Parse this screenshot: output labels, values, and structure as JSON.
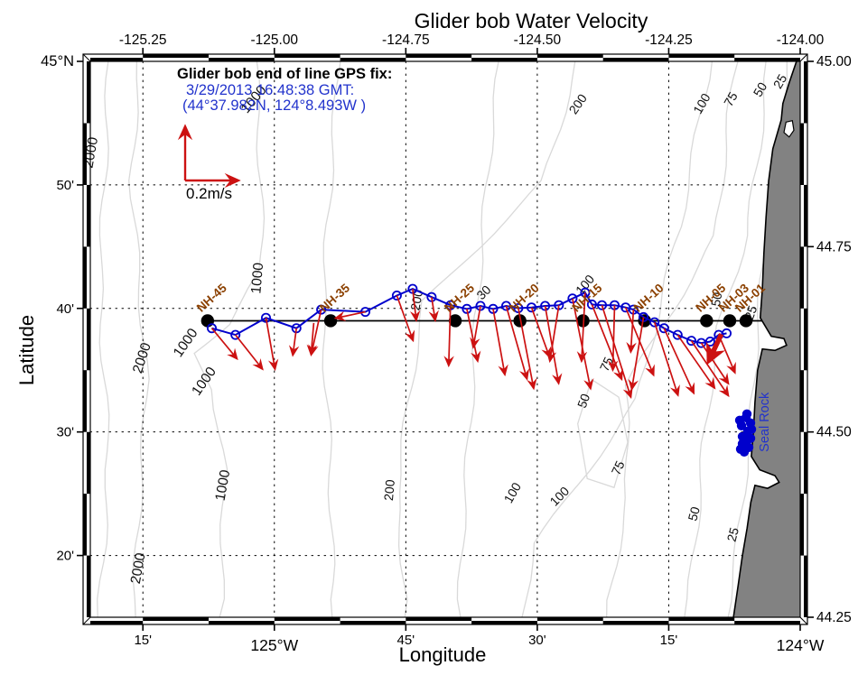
{
  "chart_data": {
    "type": "scatter",
    "title": "Glider bob Water Velocity",
    "xlabel": "Longitude",
    "ylabel": "Latitude",
    "xlim": [
      -125.35,
      -124.0
    ],
    "ylim": [
      44.25,
      45.0
    ],
    "grid": "dotted",
    "legend_position": "none",
    "axis_ticks": {
      "top": {
        "lons": [
          -125.25,
          -125.0,
          -124.75,
          -124.5,
          -124.25,
          -124.0
        ],
        "labels": [
          "-125.25",
          "-125.00",
          "-124.75",
          "-124.50",
          "-124.25",
          "-124.00"
        ]
      },
      "bottom": {
        "lons": [
          -125.25,
          -125.0,
          -124.75,
          -124.5,
          -124.25,
          -124.0
        ],
        "labels": [
          "15'",
          "125°W",
          "45'",
          "30'",
          "15'",
          "124°W"
        ]
      },
      "left": {
        "lats": [
          45.0,
          44.8333,
          44.6667,
          44.5,
          44.3333
        ],
        "labels": [
          "45°N",
          "50'",
          "40'",
          "30'",
          "20'"
        ]
      },
      "right": {
        "lats": [
          45.0,
          44.75,
          44.5,
          44.25
        ],
        "labels": [
          "45.00",
          "44.75",
          "44.50",
          "44.25"
        ]
      }
    },
    "annotation": {
      "heading": "Glider bob end of line GPS fix:",
      "datetime": "3/29/2013 16:48:38 GMT:",
      "position": "(44°37.982N, 124°8.493W )"
    },
    "scale_arrow": {
      "label": "0.2m/s",
      "speed_mps": 0.2
    },
    "seal_rock": {
      "label": "Seal Rock",
      "lon": -124.103,
      "lat": 44.495
    },
    "transect": {
      "lat": 44.65,
      "lon_start": -125.127,
      "lon_end": -124.073
    },
    "stations": {
      "names": [
        "NH-45",
        "NH-35",
        "NH-25",
        "NH-20",
        "NH-15",
        "NH-10",
        "NH-05",
        "NH-03",
        "NH-01"
      ],
      "lons": [
        -125.127,
        -124.893,
        -124.656,
        -124.533,
        -124.413,
        -124.296,
        -124.178,
        -124.134,
        -124.103
      ],
      "lat": 44.65
    },
    "glider_track": {
      "lons": [
        -125.119,
        -125.074,
        -125.016,
        -124.958,
        -124.911,
        -124.827,
        -124.767,
        -124.737,
        -124.701,
        -124.665,
        -124.634,
        -124.608,
        -124.584,
        -124.559,
        -124.536,
        -124.511,
        -124.485,
        -124.459,
        -124.433,
        -124.409,
        -124.396,
        -124.377,
        -124.353,
        -124.332,
        -124.317,
        -124.298,
        -124.277,
        -124.259,
        -124.233,
        -124.207,
        -124.188,
        -124.171,
        -124.155,
        -124.14
      ],
      "lats": [
        44.64,
        44.631,
        44.654,
        44.64,
        44.665,
        44.662,
        44.684,
        44.693,
        44.682,
        44.671,
        44.666,
        44.67,
        44.666,
        44.67,
        44.667,
        44.668,
        44.67,
        44.671,
        44.68,
        44.688,
        44.672,
        44.671,
        44.671,
        44.668,
        44.665,
        44.655,
        44.648,
        44.64,
        44.631,
        44.623,
        44.62,
        44.622,
        44.631,
        44.633
      ]
    },
    "velocity_vectors": [
      [
        -125.119,
        44.64,
        28,
        34
      ],
      [
        -125.074,
        44.631,
        30,
        38
      ],
      [
        -125.016,
        44.654,
        10,
        57
      ],
      [
        -124.958,
        44.64,
        -4,
        30
      ],
      [
        -124.925,
        44.647,
        -3,
        35
      ],
      [
        -124.911,
        44.665,
        -11,
        50
      ],
      [
        -124.827,
        44.662,
        -33,
        7
      ],
      [
        -124.767,
        44.684,
        18,
        50
      ],
      [
        -124.737,
        44.693,
        4,
        35
      ],
      [
        -124.701,
        44.682,
        4,
        26
      ],
      [
        -124.665,
        44.671,
        -2,
        67
      ],
      [
        -124.634,
        44.666,
        12,
        58
      ],
      [
        -124.608,
        44.67,
        -8,
        46
      ],
      [
        -124.584,
        44.666,
        13,
        73
      ],
      [
        -124.559,
        44.67,
        23,
        81
      ],
      [
        -124.536,
        44.667,
        17,
        89
      ],
      [
        -124.511,
        44.668,
        20,
        55
      ],
      [
        -124.485,
        44.67,
        15,
        86
      ],
      [
        -124.459,
        44.671,
        -10,
        62
      ],
      [
        -124.433,
        44.68,
        20,
        100
      ],
      [
        -124.409,
        44.688,
        -4,
        76
      ],
      [
        -124.396,
        44.672,
        33,
        83
      ],
      [
        -124.377,
        44.671,
        32,
        102
      ],
      [
        -124.353,
        44.671,
        -2,
        72
      ],
      [
        -124.332,
        44.668,
        31,
        75
      ],
      [
        -124.317,
        44.665,
        -3,
        47
      ],
      [
        -124.298,
        44.655,
        -13,
        80
      ],
      [
        -124.277,
        44.648,
        26,
        81
      ],
      [
        -124.259,
        44.64,
        33,
        72
      ],
      [
        -124.233,
        44.631,
        41,
        59
      ],
      [
        -124.207,
        44.623,
        41,
        61
      ],
      [
        -124.188,
        44.62,
        30,
        45
      ],
      [
        -124.155,
        44.631,
        18,
        42
      ]
    ],
    "final_vector": {
      "lon": -124.15,
      "lat": 44.632,
      "dx": -14,
      "dy": 30
    },
    "bathymetry_labels": [
      {
        "text": "2000",
        "lon": -125.341,
        "lat": 44.876,
        "rot": -80,
        "big": true
      },
      {
        "text": "2000",
        "lon": -125.244,
        "lat": 44.598,
        "rot": -72,
        "big": true
      },
      {
        "text": "2000",
        "lon": -125.251,
        "lat": 44.315,
        "rot": -80,
        "big": true
      },
      {
        "text": "1000",
        "lon": -125.033,
        "lat": 44.945,
        "rot": -50,
        "big": true
      },
      {
        "text": "1000",
        "lon": -125.024,
        "lat": 44.707,
        "rot": -85,
        "big": true
      },
      {
        "text": "1000",
        "lon": -125.162,
        "lat": 44.617,
        "rot": -55,
        "big": true
      },
      {
        "text": "1000",
        "lon": -125.127,
        "lat": 44.565,
        "rot": -55,
        "big": true
      },
      {
        "text": "1000",
        "lon": -125.09,
        "lat": 44.427,
        "rot": -80,
        "big": true
      },
      {
        "text": "200",
        "lon": -124.416,
        "lat": 44.939,
        "rot": -55,
        "big": false
      },
      {
        "text": "200",
        "lon": -124.721,
        "lat": 44.677,
        "rot": -80,
        "big": false
      },
      {
        "text": "200",
        "lon": -124.773,
        "lat": 44.421,
        "rot": -85,
        "big": false
      },
      {
        "text": "100",
        "lon": -124.18,
        "lat": 44.94,
        "rot": -60,
        "big": false
      },
      {
        "text": "75",
        "lon": -124.125,
        "lat": 44.946,
        "rot": -60,
        "big": false
      },
      {
        "text": "50",
        "lon": -124.069,
        "lat": 44.959,
        "rot": -60,
        "big": false
      },
      {
        "text": "25",
        "lon": -124.031,
        "lat": 44.97,
        "rot": -60,
        "big": false
      },
      {
        "text": "30",
        "lon": -124.596,
        "lat": 44.684,
        "rot": -45,
        "big": false
      },
      {
        "text": "100",
        "lon": -124.403,
        "lat": 44.695,
        "rot": -50,
        "big": false
      },
      {
        "text": "50",
        "lon": -124.151,
        "lat": 44.678,
        "rot": -80,
        "big": false
      },
      {
        "text": "25",
        "lon": -124.086,
        "lat": 44.659,
        "rot": -70,
        "big": false
      },
      {
        "text": "75",
        "lon": -124.361,
        "lat": 44.589,
        "rot": -65,
        "big": false
      },
      {
        "text": "50",
        "lon": -124.404,
        "lat": 44.54,
        "rot": -70,
        "big": false
      },
      {
        "text": "75",
        "lon": -124.339,
        "lat": 44.449,
        "rot": -65,
        "big": false
      },
      {
        "text": "100",
        "lon": -124.54,
        "lat": 44.415,
        "rot": -60,
        "big": false
      },
      {
        "text": "100",
        "lon": -124.452,
        "lat": 44.409,
        "rot": -45,
        "big": false
      },
      {
        "text": "50",
        "lon": -124.194,
        "lat": 44.388,
        "rot": -75,
        "big": false
      },
      {
        "text": "25",
        "lon": -124.12,
        "lat": 44.36,
        "rot": -75,
        "big": false
      }
    ],
    "contour_lines": [
      {
        "pts": [
          [
            -125.319,
            45.0
          ],
          [
            -125.329,
            44.718
          ],
          [
            -125.316,
            44.474
          ],
          [
            -125.336,
            44.25
          ]
        ]
      },
      {
        "pts": [
          [
            -125.256,
            45.0
          ],
          [
            -125.268,
            44.839
          ],
          [
            -125.247,
            44.571
          ],
          [
            -125.264,
            44.25
          ]
        ]
      },
      {
        "pts": [
          [
            -125.032,
            45.0
          ],
          [
            -125.027,
            44.718
          ],
          [
            -125.089,
            44.645
          ],
          [
            -125.156,
            44.606
          ],
          [
            -125.113,
            44.557
          ],
          [
            -125.092,
            44.45
          ],
          [
            -125.104,
            44.25
          ]
        ]
      },
      {
        "pts": [
          [
            -124.883,
            45.0
          ],
          [
            -124.904,
            44.657
          ],
          [
            -124.89,
            44.25
          ]
        ]
      },
      {
        "pts": [
          [
            -124.569,
            45.0
          ],
          [
            -124.62,
            44.657
          ],
          [
            -124.646,
            44.25
          ]
        ]
      },
      {
        "pts": [
          [
            -124.423,
            45.0
          ],
          [
            -124.491,
            44.839
          ],
          [
            -124.714,
            44.677
          ],
          [
            -124.766,
            44.419
          ],
          [
            -124.752,
            44.25
          ]
        ]
      },
      {
        "pts": [
          [
            -124.174,
            45.0
          ],
          [
            -124.225,
            44.777
          ],
          [
            -124.311,
            44.545
          ],
          [
            -124.505,
            44.35
          ],
          [
            -124.529,
            44.25
          ]
        ]
      },
      {
        "pts": [
          [
            -124.119,
            45.0
          ],
          [
            -124.162,
            44.765
          ],
          [
            -124.332,
            44.563
          ],
          [
            -124.325,
            44.411
          ],
          [
            -124.368,
            44.25
          ]
        ]
      },
      {
        "pts": [
          [
            -124.062,
            45.0
          ],
          [
            -124.102,
            44.765
          ],
          [
            -124.151,
            44.643
          ],
          [
            -124.182,
            44.485
          ],
          [
            -124.203,
            44.35
          ],
          [
            -124.22,
            44.25
          ]
        ]
      },
      {
        "pts": [
          [
            -124.024,
            45.0
          ],
          [
            -124.059,
            44.777
          ],
          [
            -124.083,
            44.637
          ],
          [
            -124.103,
            44.47
          ],
          [
            -124.12,
            44.337
          ],
          [
            -124.137,
            44.25
          ]
        ]
      },
      {
        "closed": true,
        "pts": [
          [
            -124.397,
            44.571
          ],
          [
            -124.345,
            44.547
          ],
          [
            -124.328,
            44.486
          ],
          [
            -124.354,
            44.425
          ],
          [
            -124.405,
            44.437
          ],
          [
            -124.423,
            44.511
          ]
        ]
      }
    ],
    "coastline": [
      [
        -124.007,
        45.0
      ],
      [
        -124.021,
        44.971
      ],
      [
        -124.033,
        44.943
      ],
      [
        -124.036,
        44.921
      ],
      [
        -124.052,
        44.882
      ],
      [
        -124.06,
        44.839
      ],
      [
        -124.065,
        44.79
      ],
      [
        -124.069,
        44.741
      ],
      [
        -124.072,
        44.693
      ],
      [
        -124.076,
        44.654
      ],
      [
        -124.055,
        44.629
      ],
      [
        -124.031,
        44.626
      ],
      [
        -124.026,
        44.617
      ],
      [
        -124.048,
        44.61
      ],
      [
        -124.072,
        44.612
      ],
      [
        -124.081,
        44.583
      ],
      [
        -124.086,
        44.54
      ],
      [
        -124.089,
        44.5
      ],
      [
        -124.093,
        44.467
      ],
      [
        -124.077,
        44.449
      ],
      [
        -124.048,
        44.441
      ],
      [
        -124.04,
        44.432
      ],
      [
        -124.062,
        44.424
      ],
      [
        -124.086,
        44.428
      ],
      [
        -124.094,
        44.405
      ],
      [
        -124.101,
        44.37
      ],
      [
        -124.11,
        44.333
      ],
      [
        -124.118,
        44.293
      ],
      [
        -124.127,
        44.25
      ]
    ],
    "bays": [
      [
        [
          -124.027,
          44.918
        ],
        [
          -124.015,
          44.92
        ],
        [
          -124.012,
          44.907
        ],
        [
          -124.021,
          44.898
        ],
        [
          -124.031,
          44.904
        ]
      ]
    ],
    "colors": {
      "track_blue": "#0000cc",
      "text_blue": "#2233cc",
      "vector_red": "#cc1111",
      "station_brown": "#8b4000",
      "land_gray": "#828282",
      "contour_gray": "#d9d9d9"
    }
  }
}
